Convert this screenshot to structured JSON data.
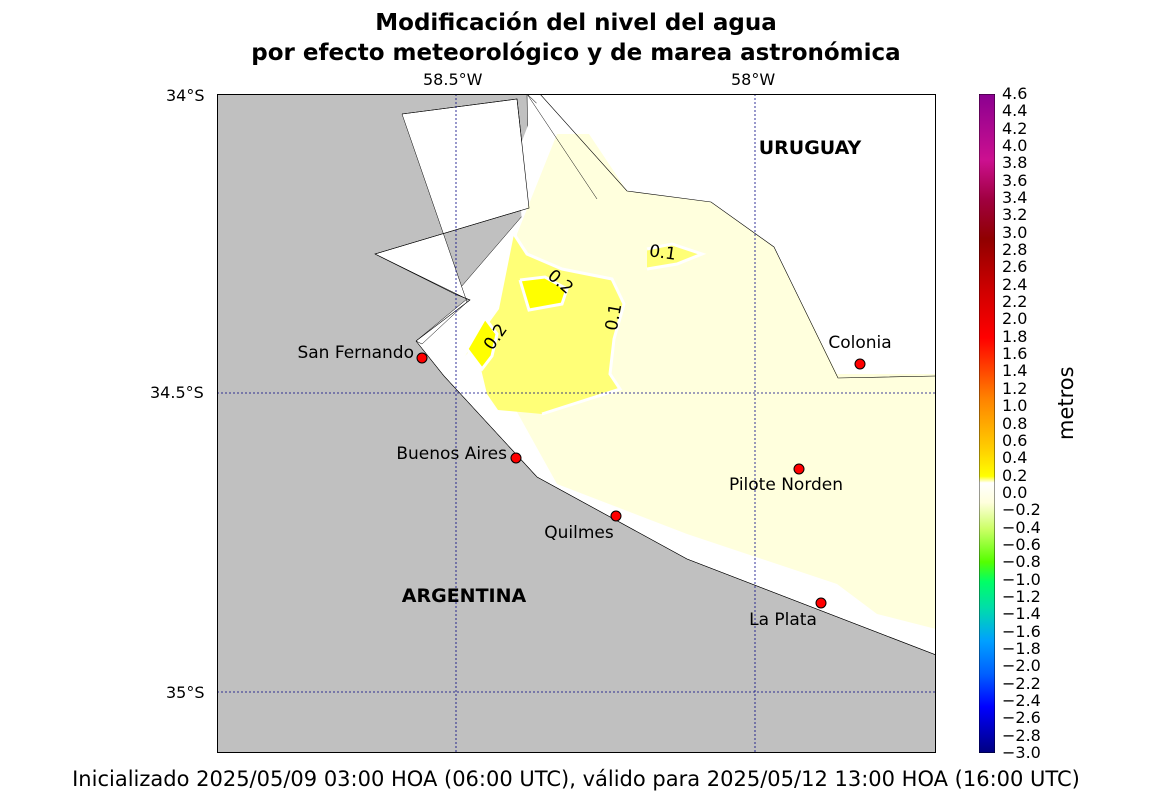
{
  "title_line1": "Modificación del nivel del agua",
  "title_line2": "por efecto meteorológico y de marea astronómica",
  "lon_labels": [
    "58.5°W",
    "58°W"
  ],
  "lat_labels": [
    "34°S",
    "34.5°S",
    "35°S"
  ],
  "country_labels": [
    "URUGUAY",
    "ARGENTINA"
  ],
  "stations": [
    {
      "name": "San Fernando",
      "lat": -34.44,
      "lon": -58.56
    },
    {
      "name": "Colonia",
      "lat": -34.45,
      "lon": -57.84
    },
    {
      "name": "Buenos Aires",
      "lat": -34.61,
      "lon": -58.4
    },
    {
      "name": "Pilote Norden",
      "lat": -34.63,
      "lon": -57.92
    },
    {
      "name": "Quilmes",
      "lat": -34.71,
      "lon": -58.23
    },
    {
      "name": "La Plata",
      "lat": -34.85,
      "lon": -57.88
    }
  ],
  "contour_labels": [
    "0.1",
    "0.2",
    "0.2",
    "0.1"
  ],
  "colorbar": {
    "label": "metros",
    "ticks": [
      "4.6",
      "4.4",
      "4.2",
      "4.0",
      "3.8",
      "3.6",
      "3.4",
      "3.2",
      "3.0",
      "2.8",
      "2.6",
      "2.4",
      "2.2",
      "2.0",
      "1.8",
      "1.6",
      "1.4",
      "1.2",
      "1.0",
      "0.8",
      "0.6",
      "0.4",
      "0.2",
      "0.0",
      "−0.2",
      "−0.4",
      "−0.6",
      "−0.8",
      "−1.0",
      "−1.2",
      "−1.4",
      "−1.6",
      "−1.8",
      "−2.0",
      "−2.2",
      "−2.4",
      "−2.6",
      "−2.8",
      "−3.0"
    ]
  },
  "footer": "Inicializado 2025/05/09 03:00 HOA (06:00 UTC), válido para 2025/05/12 13:00 HOA (16:00 UTC)",
  "colors": {
    "land": "#c0c0c0",
    "water": "#ffffff",
    "level_0_1": "#ffffdd",
    "level_1_2": "#ffff77",
    "level_2_3": "#ffff00",
    "station": "#ff0000",
    "grid": "#000080"
  }
}
